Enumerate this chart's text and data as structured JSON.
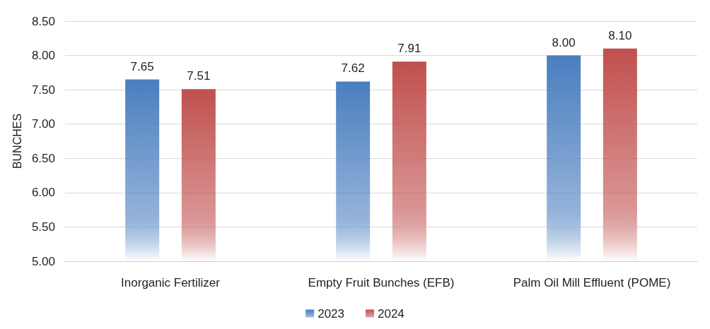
{
  "chart_data": {
    "type": "bar",
    "ylabel": "BUNCHES",
    "categories": [
      "Inorganic Fertilizer",
      "Empty Fruit Bunches (EFB)",
      "Palm Oil Mill Effluent (POME)"
    ],
    "series": [
      {
        "name": "2023",
        "color": "#4a7ebf",
        "values": [
          7.65,
          7.62,
          8.0
        ],
        "value_labels": [
          "7.65",
          "7.62",
          "8.00"
        ]
      },
      {
        "name": "2024",
        "color": "#c0504d",
        "values": [
          7.51,
          7.91,
          8.1
        ],
        "value_labels": [
          "7.51",
          "7.91",
          "8.10"
        ]
      }
    ],
    "ylim": [
      5,
      8.5
    ],
    "yticks": [
      {
        "value": 5,
        "label": "5.00"
      },
      {
        "value": 5.5,
        "label": "5.50"
      },
      {
        "value": 6,
        "label": "6.00"
      },
      {
        "value": 6.5,
        "label": "6.50"
      },
      {
        "value": 7,
        "label": "7.00"
      },
      {
        "value": 7.5,
        "label": "7.50"
      },
      {
        "value": 8,
        "label": "8.00"
      },
      {
        "value": 8.5,
        "label": "8.50"
      }
    ],
    "grid": "y",
    "legend": "bottom"
  }
}
